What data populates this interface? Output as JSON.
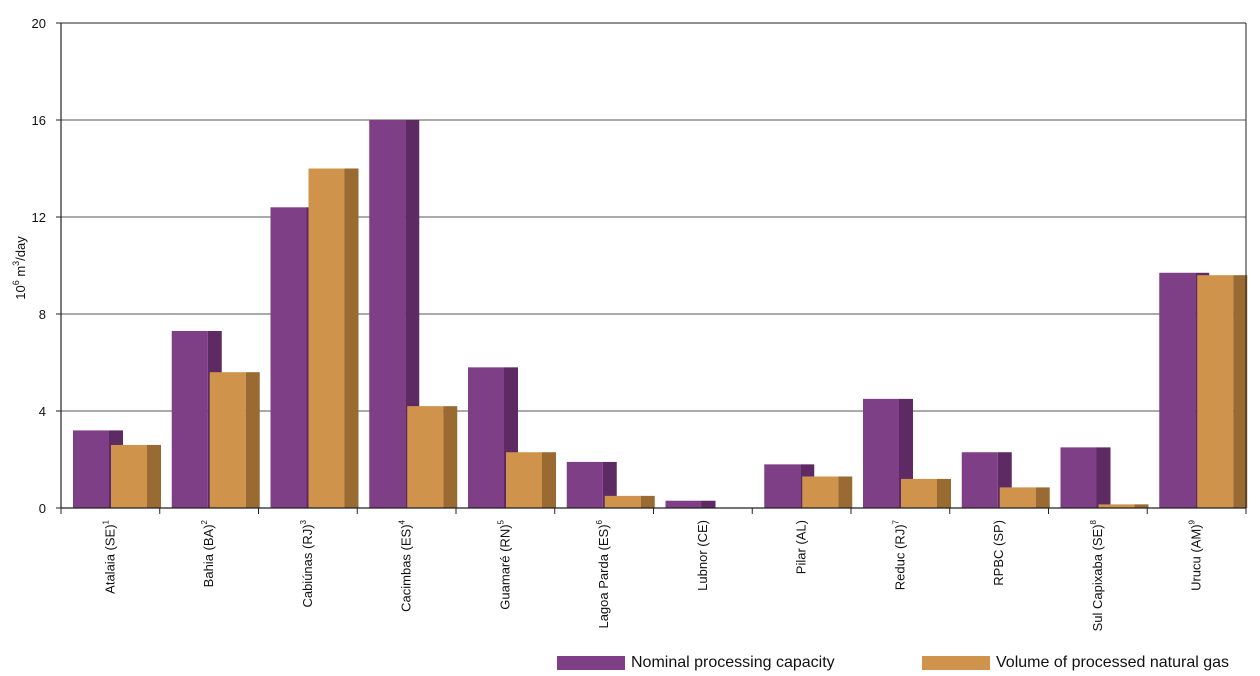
{
  "chart_data": {
    "type": "bar",
    "ylabel": "10^6 m³/day",
    "ylabel_parts": {
      "base": "10",
      "exp": "6",
      "unit": " m",
      "unit_exp": "3",
      "tail": "/day"
    },
    "ylim": [
      0,
      20
    ],
    "yticks": [
      "0",
      "4",
      "8",
      "12",
      "16",
      "20"
    ],
    "grid": true,
    "legend_position": "bottom-right",
    "categories": [
      {
        "name": "Atalaia (SE)",
        "sup": "1"
      },
      {
        "name": "Bahia (BA)",
        "sup": "2"
      },
      {
        "name": "Cabiúnas (RJ)",
        "sup": "3"
      },
      {
        "name": "Cacimbas (ES)",
        "sup": "4"
      },
      {
        "name": "Guamaré (RN)",
        "sup": "5"
      },
      {
        "name": "Lagoa Parda (ES)",
        "sup": "6"
      },
      {
        "name": "Lubnor (CE)",
        "sup": ""
      },
      {
        "name": "Pilar (AL)",
        "sup": ""
      },
      {
        "name": "Reduc (RJ)",
        "sup": "7"
      },
      {
        "name": "RPBC (SP)",
        "sup": ""
      },
      {
        "name": "Sul Capixaba (SE)",
        "sup": "8"
      },
      {
        "name": "Urucu (AM)",
        "sup": "9"
      }
    ],
    "series": [
      {
        "name": "Nominal processing capacity",
        "color": "#7f3f86",
        "shade": "#5e2a63",
        "values": [
          3.2,
          7.3,
          12.4,
          16.0,
          5.8,
          1.9,
          0.3,
          1.8,
          4.5,
          2.3,
          2.5,
          9.7
        ]
      },
      {
        "name": "Volume of processed natural gas",
        "color": "#cf934b",
        "shade": "#9a6a33",
        "values": [
          2.6,
          5.6,
          14.0,
          4.2,
          2.3,
          0.5,
          0.0,
          1.3,
          1.2,
          0.85,
          0.15,
          9.6
        ]
      }
    ]
  }
}
